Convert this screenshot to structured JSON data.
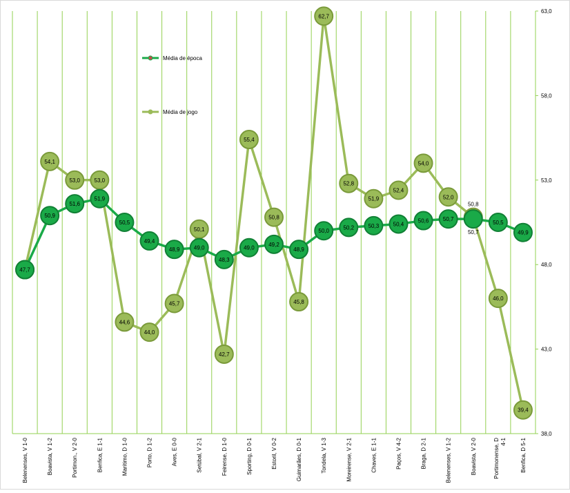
{
  "chart_data": {
    "type": "line",
    "categories": [
      "Belenenses, V 1-0",
      "Boavista, V 1-2",
      "Portimon., V 2-0",
      "Benfica, E 1-1",
      "Marítimo, D 1-0",
      "Porto, D 1-2",
      "Aves, E 0-0",
      "Setúbal, V 2-1",
      "Feirense, D 1-0",
      "Sporting, D 0-1",
      "Estoril, V 0-2",
      "Guimarães, D 0-1",
      "Tondela, V 1-3",
      "Moreirense, V 2-1",
      "Chaves, E 1-1",
      "Paços, V 4-2",
      "Braga, D 2-1",
      "Belenenses, V 1-2",
      "Boavista, V 2-0",
      "Portimonense, D 4-1",
      "Benfica, D 5-1"
    ],
    "series": [
      {
        "name": "Média de época",
        "color": "#1aaa48",
        "values": [
          47.7,
          50.9,
          51.6,
          51.9,
          50.5,
          49.4,
          48.9,
          49.0,
          48.3,
          49.0,
          49.2,
          48.9,
          50.0,
          50.2,
          50.3,
          50.4,
          50.6,
          50.7,
          50.7,
          50.5,
          49.9
        ]
      },
      {
        "name": "Média de jogo",
        "color": "#9bbb59",
        "values": [
          47.7,
          54.1,
          53.0,
          53.0,
          44.6,
          44.0,
          45.7,
          50.1,
          42.7,
          55.4,
          50.8,
          45.8,
          62.7,
          52.8,
          51.9,
          52.4,
          54.0,
          52.0,
          50.8,
          46.0,
          39.4
        ]
      }
    ],
    "y_axis": {
      "position": "right",
      "ylim": [
        38.0,
        63.0
      ],
      "ticks": [
        "38,0",
        "43,0",
        "48,0",
        "53,0",
        "58,0",
        "63,0"
      ]
    },
    "grid": "vertical",
    "legend": "upper-left-inside"
  }
}
